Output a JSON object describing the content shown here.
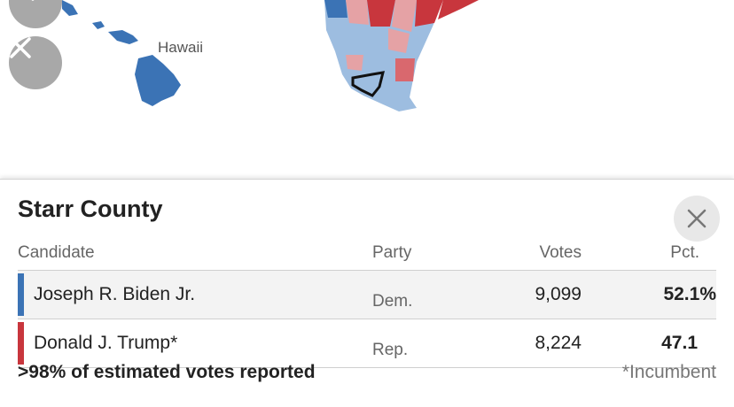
{
  "map": {
    "label": "Hawaii",
    "dem_color": "#3b73b5",
    "dem_light": "#9dbde0",
    "rep_color": "#c8363d",
    "rep_light": "#e5a2a5"
  },
  "controls": {
    "search_icon": "search-icon",
    "close_icon": "close-icon"
  },
  "panel": {
    "title": "Starr County",
    "close_icon": "close-icon",
    "columns": {
      "candidate": "Candidate",
      "party": "Party",
      "votes": "Votes",
      "pct": "Pct."
    },
    "rows": [
      {
        "candidate": "Joseph R. Biden Jr.",
        "party": "Dem.",
        "votes": "9,099",
        "pct": "52.1%",
        "color": "#3b73b5"
      },
      {
        "candidate": "Donald J. Trump*",
        "party": "Rep.",
        "votes": "8,224",
        "pct": "47.1",
        "color": "#c8363d"
      }
    ],
    "reported": ">98% of estimated votes reported",
    "incumbent_note": "*Incumbent"
  }
}
